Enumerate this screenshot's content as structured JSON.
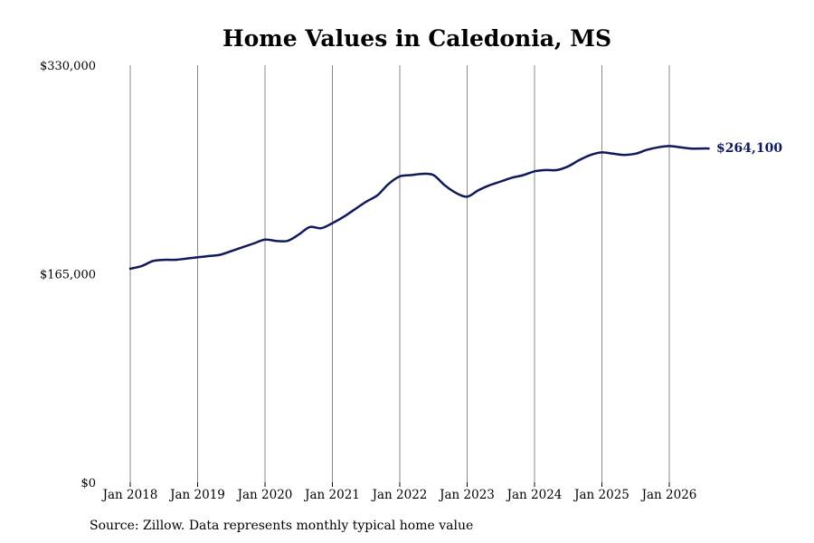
{
  "chart_data": {
    "type": "line",
    "title": "Home Values in Caledonia, MS",
    "xlabel": "",
    "ylabel": "",
    "ylim": [
      0,
      330000
    ],
    "y_ticks": [
      "$0",
      "$165,000",
      "$330,000"
    ],
    "x_ticks": [
      "Jan 2018",
      "Jan 2019",
      "Jan 2020",
      "Jan 2021",
      "Jan 2022",
      "Jan 2023",
      "Jan 2024",
      "Jan 2025",
      "Jan 2026"
    ],
    "grid": "vertical",
    "end_label": "$264,100",
    "color": "#0f1a5c",
    "series": [
      {
        "x": [
          "2018-01",
          "2018-03",
          "2018-05",
          "2018-07",
          "2018-09",
          "2018-11",
          "2019-01",
          "2019-03",
          "2019-05",
          "2019-07",
          "2019-09",
          "2019-11",
          "2020-01",
          "2020-03",
          "2020-05",
          "2020-07",
          "2020-09",
          "2020-11",
          "2021-01",
          "2021-03",
          "2021-05",
          "2021-07",
          "2021-09",
          "2021-11",
          "2022-01",
          "2022-03",
          "2022-05",
          "2022-07",
          "2022-09",
          "2022-11",
          "2023-01",
          "2023-03",
          "2023-05",
          "2023-07",
          "2023-09",
          "2023-11",
          "2024-01",
          "2024-03",
          "2024-05",
          "2024-07",
          "2024-09",
          "2024-11",
          "2025-01",
          "2025-03",
          "2025-05",
          "2025-07",
          "2025-09",
          "2025-11",
          "2026-01",
          "2026-03",
          "2026-05",
          "2026-07",
          "2026-08"
        ],
        "values": [
          169000,
          171000,
          175000,
          176000,
          176000,
          177000,
          178000,
          179000,
          180000,
          183000,
          186000,
          189000,
          192000,
          191000,
          191000,
          196000,
          202000,
          201000,
          205000,
          210000,
          216000,
          222000,
          227000,
          236000,
          242000,
          243000,
          244000,
          243000,
          235000,
          229000,
          226000,
          231000,
          235000,
          238000,
          241000,
          243000,
          246000,
          247000,
          247000,
          250000,
          255000,
          259000,
          261000,
          260000,
          259000,
          260000,
          263000,
          265000,
          266000,
          265000,
          264000,
          264100,
          264100
        ]
      }
    ],
    "source_note": "Source: Zillow. Data represents monthly typical home value"
  }
}
